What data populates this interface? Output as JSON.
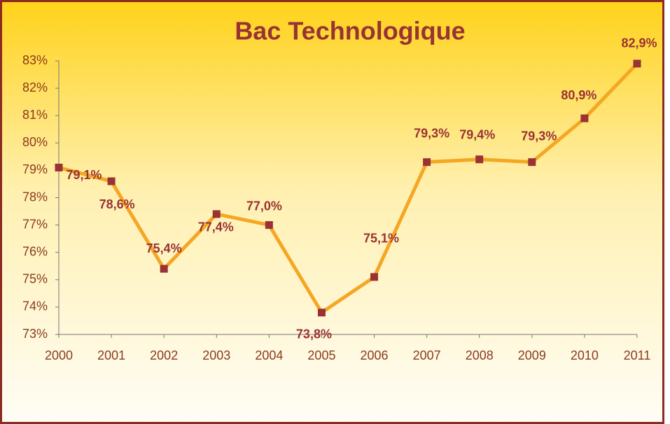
{
  "chart_data": {
    "type": "line",
    "title": "Bac Technologique",
    "categories": [
      "2000",
      "2001",
      "2002",
      "2003",
      "2004",
      "2005",
      "2006",
      "2007",
      "2008",
      "2009",
      "2010",
      "2011"
    ],
    "series": [
      {
        "color": "#f5a623",
        "values": [
          79.1,
          78.6,
          75.4,
          77.4,
          77.0,
          73.8,
          75.1,
          79.3,
          79.4,
          79.3,
          80.9,
          82.9
        ],
        "value_labels": [
          "79,1%",
          "78,6%",
          "75,4%",
          "77,4%",
          "77,0%",
          "73,8%",
          "75,1%",
          "79,3%",
          "79,4%",
          "79,3%",
          "80,9%",
          "82,9%"
        ]
      }
    ],
    "marker_color": "#993333",
    "ylim": [
      73,
      83
    ],
    "yticks": [
      {
        "value": 73,
        "label": "73%"
      },
      {
        "value": 74,
        "label": "74%"
      },
      {
        "value": 75,
        "label": "75%"
      },
      {
        "value": 76,
        "label": "76%"
      },
      {
        "value": 77,
        "label": "77%"
      },
      {
        "value": 78,
        "label": "78%"
      },
      {
        "value": 79,
        "label": "79%"
      },
      {
        "value": 80,
        "label": "80%"
      },
      {
        "value": 81,
        "label": "81%"
      },
      {
        "value": 82,
        "label": "82%"
      },
      {
        "value": 83,
        "label": "83%"
      }
    ]
  }
}
